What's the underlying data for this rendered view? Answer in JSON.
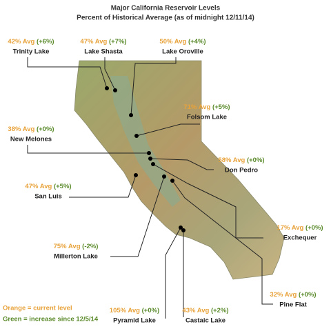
{
  "title": [
    "Major California Reservoir Levels",
    "Percent of Historical Average (as of midnight 12/11/14)"
  ],
  "legend": {
    "orange": "Orange = current level",
    "green": "Green = increase since 12/5/14"
  },
  "reservoirs": [
    {
      "level": "42% Avg",
      "change": "(+6%)",
      "name": "Trinity Lake"
    },
    {
      "level": "47% Avg",
      "change": "(+7%)",
      "name": "Lake Shasta"
    },
    {
      "level": "50% Avg",
      "change": "(+4%)",
      "name": "Lake Oroville"
    },
    {
      "level": "71% Avg",
      "change": "(+5%)",
      "name": "Folsom Lake"
    },
    {
      "level": "38% Avg",
      "change": "(+0%)",
      "name": "New Melones"
    },
    {
      "level": "58% Avg",
      "change": "(+0%)",
      "name": "Don Pedro"
    },
    {
      "level": "47% Avg",
      "change": "(+5%)",
      "name": "San Luis"
    },
    {
      "level": "17% Avg",
      "change": "(+0%)",
      "name": "Exchequer"
    },
    {
      "level": "75% Avg",
      "change": "(-2%)",
      "name": "Millerton Lake"
    },
    {
      "level": "32% Avg",
      "change": "(+0%)",
      "name": "Pine Flat"
    },
    {
      "level": "105% Avg",
      "change": "(+0%)",
      "name": "Pyramid Lake"
    },
    {
      "level": "43% Avg",
      "change": "(+2%)",
      "name": "Castaic Lake"
    }
  ]
}
